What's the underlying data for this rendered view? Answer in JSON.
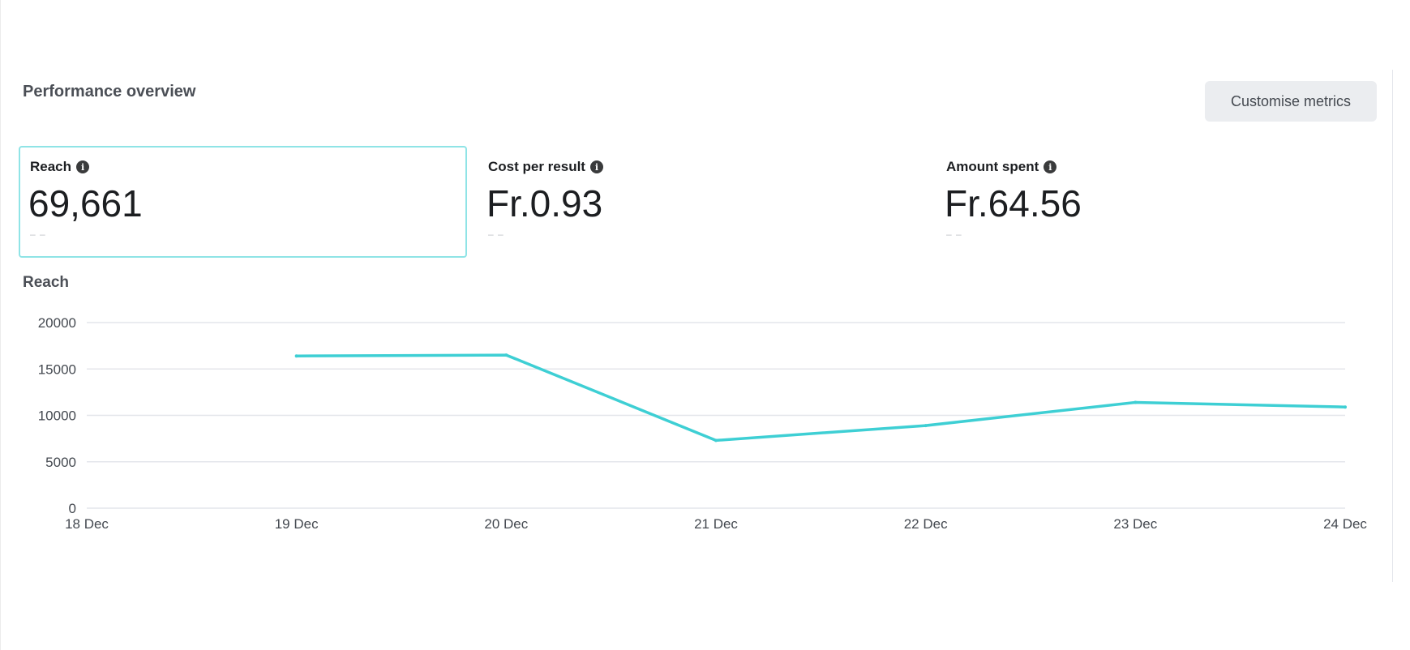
{
  "panel": {
    "title": "Performance overview",
    "customise_label": "Customise metrics"
  },
  "metrics": [
    {
      "label": "Reach",
      "value": "69,661",
      "sub": "– –",
      "selected": true,
      "icon": "info-icon"
    },
    {
      "label": "Cost per result",
      "value": "Fr.0.93",
      "sub": "– –",
      "selected": false,
      "icon": "info-icon"
    },
    {
      "label": "Amount spent",
      "value": "Fr.64.56",
      "sub": "– –",
      "selected": false,
      "icon": "info-icon"
    }
  ],
  "colors": {
    "line": "#3ecfd4",
    "selected_border": "#8fe4e6",
    "grid": "#e4e6eb"
  },
  "chart_data": {
    "type": "line",
    "title": "Reach",
    "xlabel": "",
    "ylabel": "",
    "categories": [
      "18 Dec",
      "19 Dec",
      "20 Dec",
      "21 Dec",
      "22 Dec",
      "23 Dec",
      "24 Dec"
    ],
    "series": [
      {
        "values": [
          null,
          16400,
          16500,
          7300,
          8900,
          11400,
          10900
        ]
      }
    ],
    "yticks": [
      0,
      5000,
      10000,
      15000,
      20000
    ],
    "ylim": [
      0,
      20000
    ],
    "grid": true,
    "legend": "none"
  }
}
